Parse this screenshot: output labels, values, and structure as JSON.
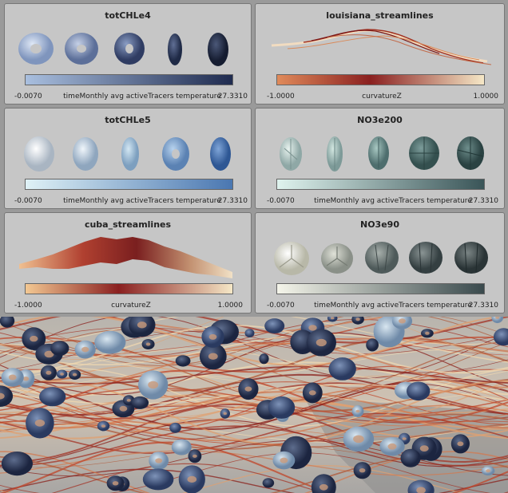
{
  "panels": [
    {
      "title": "totCHLe4",
      "min_label": "-0.0070",
      "caption": "timeMonthly avg activeTracers temperature",
      "max_label": "27.3310",
      "colors": [
        "#a9bfdf",
        "#1f2b4f"
      ]
    },
    {
      "title": "louisiana_streamlines",
      "min_label": "-1.0000",
      "caption": "curvatureZ",
      "max_label": "1.0000",
      "colors": [
        "#e08a5a",
        "#8a2020",
        "#f5e7c6"
      ]
    },
    {
      "title": "totCHLe5",
      "min_label": "-0.0070",
      "caption": "timeMonthly avg activeTracers temperature",
      "max_label": "27.3310",
      "colors": [
        "#dff1f6",
        "#4a77b1"
      ]
    },
    {
      "title": "NO3e200",
      "min_label": "-0.0070",
      "caption": "timeMonthly avg activeTracers temperature",
      "max_label": "27.3310",
      "colors": [
        "#dff3ee",
        "#3a5558"
      ]
    },
    {
      "title": "cuba_streamlines",
      "min_label": "-1.0000",
      "caption": "curvatureZ",
      "max_label": "1.0000",
      "colors": [
        "#f3c892",
        "#8a2020",
        "#f5e7c6"
      ]
    },
    {
      "title": "NO3e90",
      "min_label": "-0.0070",
      "caption": "timeMonthly avg activeTracers temperature",
      "max_label": "27.3310",
      "colors": [
        "#f5f5ea",
        "#3a4a4d"
      ]
    }
  ]
}
